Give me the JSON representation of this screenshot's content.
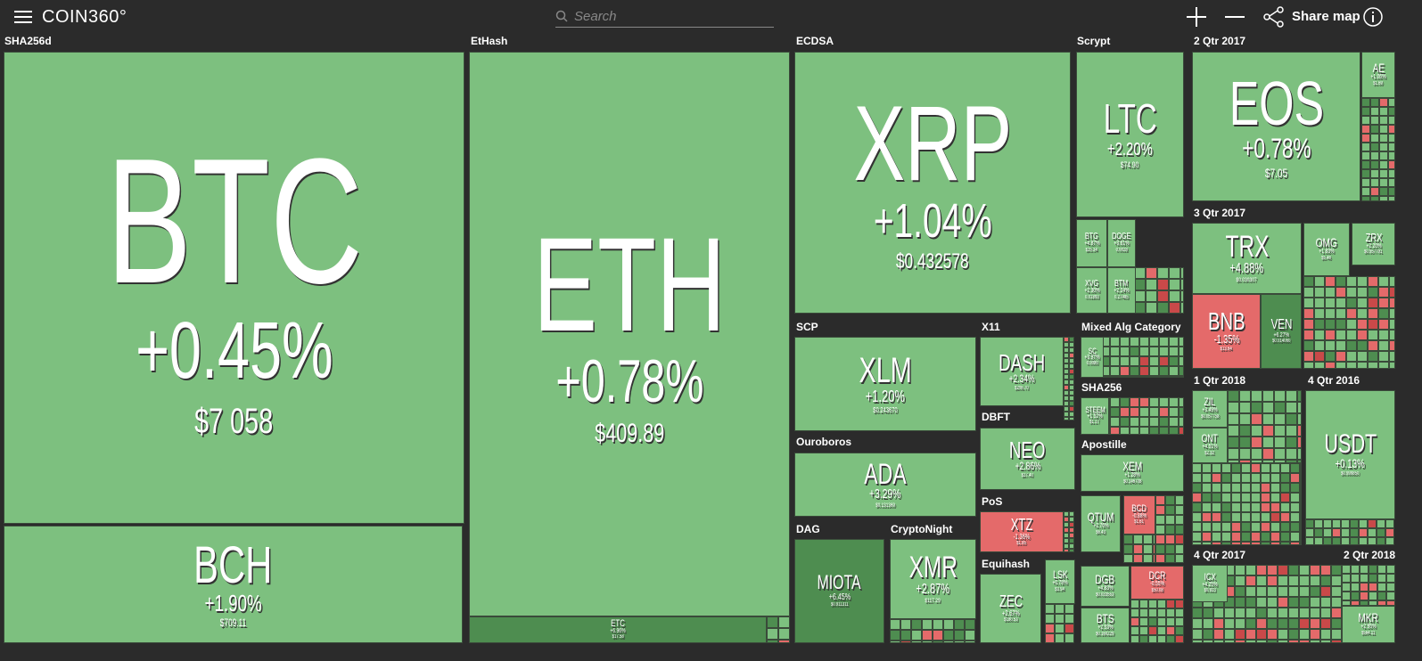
{
  "header": {
    "logo": "COIN360°",
    "search_placeholder": "Search",
    "share": "Share map"
  },
  "groups": [
    {
      "label": "SHA256d",
      "tiles": [
        {
          "symbol": "BTC",
          "change": "+0.45%",
          "price": "$7 058"
        },
        {
          "symbol": "BCH",
          "change": "+1.90%",
          "price": "$709.11"
        }
      ]
    },
    {
      "label": "EtHash",
      "tiles": [
        {
          "symbol": "ETH",
          "change": "+0.78%",
          "price": "$409.89"
        },
        {
          "symbol": "ETC",
          "change": "+6.96%",
          "price": "$17.58"
        }
      ]
    },
    {
      "label": "ECDSA",
      "tiles": [
        {
          "symbol": "XRP",
          "change": "+1.04%",
          "price": "$0.432578"
        }
      ]
    },
    {
      "label": "Scrypt",
      "tiles": [
        {
          "symbol": "LTC",
          "change": "+2.20%",
          "price": "$74.90"
        },
        {
          "symbol": "BTG",
          "change": "+4.87%",
          "price": "$25.34"
        },
        {
          "symbol": "DOGE",
          "change": "+3.61%",
          "price": "0.0028"
        },
        {
          "symbol": "XVG",
          "change": "+2.30%",
          "price": "0.01893"
        },
        {
          "symbol": "BTM",
          "change": "+2.24%",
          "price": "0.27485"
        }
      ]
    },
    {
      "label": "2 Qtr 2017",
      "tiles": [
        {
          "symbol": "EOS",
          "change": "+0.78%",
          "price": "$7.05"
        },
        {
          "symbol": "AE",
          "change": "+1.06%",
          "price": "$1.69"
        }
      ]
    },
    {
      "label": "3 Qtr 2017",
      "tiles": [
        {
          "symbol": "TRX",
          "change": "+4.88%",
          "price": "$0.030307"
        },
        {
          "symbol": "BNB",
          "change": "-1.35%",
          "price": "$13.64"
        },
        {
          "symbol": "VEN",
          "change": "+6.27%",
          "price": "$0.014060"
        },
        {
          "symbol": "OMG",
          "change": "+1.83%",
          "price": "$5.46"
        },
        {
          "symbol": "ZRX",
          "change": "+2.20%",
          "price": "$0.957791"
        }
      ]
    },
    {
      "label": "SCP",
      "tiles": [
        {
          "symbol": "XLM",
          "change": "+1.20%",
          "price": "$0.243670"
        }
      ]
    },
    {
      "label": "X11",
      "tiles": [
        {
          "symbol": "DASH",
          "change": "+2.34%",
          "price": "$206.70"
        }
      ]
    },
    {
      "label": "Ouroboros",
      "tiles": [
        {
          "symbol": "ADA",
          "change": "+3.29%",
          "price": "$0.131369"
        }
      ]
    },
    {
      "label": "DBFT",
      "tiles": [
        {
          "symbol": "NEO",
          "change": "+2.86%",
          "price": "$27.40"
        }
      ]
    },
    {
      "label": "PoS",
      "tiles": [
        {
          "symbol": "XTZ",
          "change": "-1.36%",
          "price": "$1.85"
        }
      ]
    },
    {
      "label": "DAG",
      "tiles": [
        {
          "symbol": "MIOTA",
          "change": "+6.45%",
          "price": "$0.911311"
        }
      ]
    },
    {
      "label": "CryptoNight",
      "tiles": [
        {
          "symbol": "XMR",
          "change": "+2.87%",
          "price": "$117.29"
        }
      ]
    },
    {
      "label": "Equihash",
      "tiles": [
        {
          "symbol": "ZEC",
          "change": "+2.67%",
          "price": "$180.53"
        },
        {
          "symbol": "LSK",
          "change": "+0.78%",
          "price": "$3.94"
        }
      ]
    },
    {
      "label": "Mixed Alg Category",
      "tiles": [
        {
          "symbol": "SC",
          "change": "+3.97%",
          "price": "0.0080"
        }
      ]
    },
    {
      "label": "SHA256",
      "tiles": [
        {
          "symbol": "STEEM",
          "change": "+1.52%",
          "price": "$1.17"
        }
      ]
    },
    {
      "label": "Apostille",
      "tiles": [
        {
          "symbol": "XEM",
          "change": "+1.28%",
          "price": "$0.146708"
        },
        {
          "symbol": "QTUM",
          "change": "+2.76%",
          "price": "$6.43"
        },
        {
          "symbol": "BCD",
          "change": "-0.88%",
          "price": "$1.61"
        },
        {
          "symbol": "DGB",
          "change": "+4.83%",
          "price": "$0.033553"
        },
        {
          "symbol": "BTS",
          "change": "+2.53%",
          "price": "$0.160229"
        },
        {
          "symbol": "DCR",
          "change": "-0.55%",
          "price": "$50.08"
        }
      ]
    },
    {
      "label": "1 Qtr 2018",
      "tiles": [
        {
          "symbol": "ZIL",
          "change": "+3.49%",
          "price": "$0.057758"
        },
        {
          "symbol": "ONT",
          "change": "+4.51%",
          "price": "$2.32"
        }
      ]
    },
    {
      "label": "4 Qtr 2016",
      "tiles": [
        {
          "symbol": "USDT",
          "change": "+0.13%",
          "price": "$0.999850"
        }
      ]
    },
    {
      "label": "4 Qtr 2017",
      "tiles": [
        {
          "symbol": "ICX",
          "change": "+4.25%",
          "price": "$0.923"
        }
      ]
    },
    {
      "label": "2 Qtr 2018",
      "tiles": [
        {
          "symbol": "MKR",
          "change": "+2.95%",
          "price": "$564.11"
        }
      ]
    }
  ]
}
